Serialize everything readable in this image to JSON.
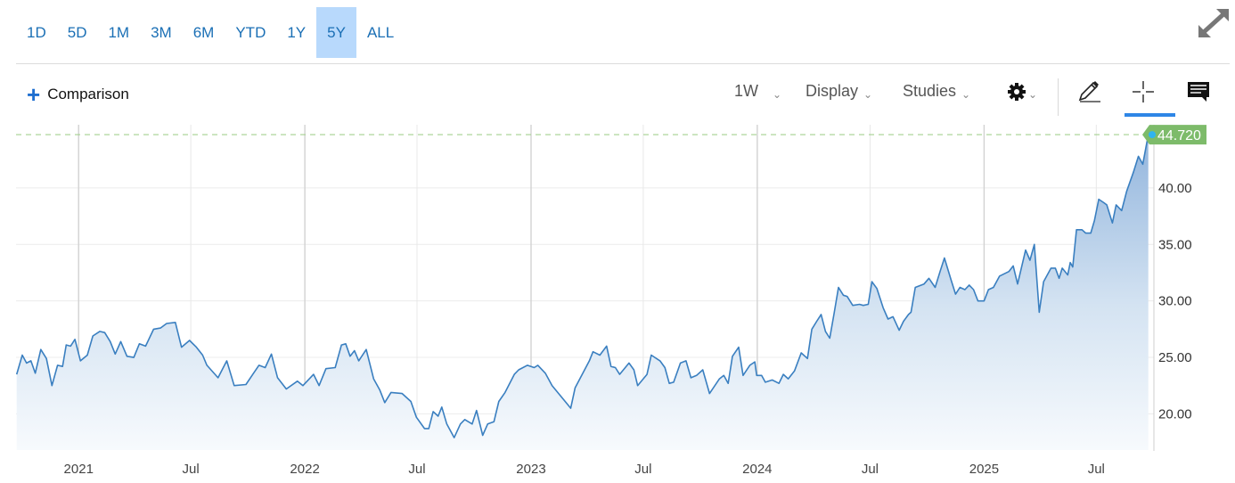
{
  "range_selector": {
    "items": [
      "1D",
      "5D",
      "1M",
      "3M",
      "6M",
      "YTD",
      "1Y",
      "5Y",
      "ALL"
    ],
    "selected": "5Y"
  },
  "toolbar": {
    "comparison_label": "Comparison",
    "interval_label": "1W",
    "display_label": "Display",
    "studies_label": "Studies",
    "icons": [
      "plus-icon",
      "chevron-down-icon",
      "gear-icon",
      "pencil-icon",
      "crosshair-icon",
      "comment-icon",
      "expand-icon"
    ],
    "active_tool": "crosshair"
  },
  "colors": {
    "accent": "#1a6fb5",
    "selected_range_bg": "#b8d9fc",
    "line": "#3a7fc0",
    "last_price_tag": "#7dbb6a",
    "last_price_dot": "#2fb4f0"
  },
  "chart_data": {
    "type": "area",
    "interval": "1W",
    "last_price_label": "44.720",
    "xlim": [
      "2020-09-22",
      "2025-10-02"
    ],
    "ylim": [
      16.8,
      45.2
    ],
    "grid": true,
    "y_axis_side": "right",
    "x_ticks": [
      {
        "date": "2021-01-01",
        "label": "2021",
        "major": true
      },
      {
        "date": "2021-07-01",
        "label": "Jul",
        "major": false
      },
      {
        "date": "2022-01-01",
        "label": "2022",
        "major": true
      },
      {
        "date": "2022-07-01",
        "label": "Jul",
        "major": false
      },
      {
        "date": "2023-01-01",
        "label": "2023",
        "major": true
      },
      {
        "date": "2023-07-01",
        "label": "Jul",
        "major": false
      },
      {
        "date": "2024-01-01",
        "label": "2024",
        "major": true
      },
      {
        "date": "2024-07-01",
        "label": "Jul",
        "major": false
      },
      {
        "date": "2025-01-01",
        "label": "2025",
        "major": true
      },
      {
        "date": "2025-07-01",
        "label": "Jul",
        "major": false
      }
    ],
    "y_ticks": [
      {
        "value": 40,
        "label": "40.00"
      },
      {
        "value": 35,
        "label": "35.00"
      },
      {
        "value": 30,
        "label": "30.00"
      },
      {
        "value": 25,
        "label": "25.00"
      },
      {
        "value": 20,
        "label": "20.00"
      }
    ],
    "points": [
      [
        "2020-09-23",
        23.5
      ],
      [
        "2020-10-02",
        25.2
      ],
      [
        "2020-10-09",
        24.5
      ],
      [
        "2020-10-16",
        24.7
      ],
      [
        "2020-10-23",
        23.6
      ],
      [
        "2020-11-01",
        25.7
      ],
      [
        "2020-11-10",
        24.9
      ],
      [
        "2020-11-19",
        22.5
      ],
      [
        "2020-11-28",
        24.3
      ],
      [
        "2020-12-06",
        24.2
      ],
      [
        "2020-12-12",
        26.1
      ],
      [
        "2020-12-19",
        26.0
      ],
      [
        "2020-12-26",
        26.6
      ],
      [
        "2021-01-04",
        24.7
      ],
      [
        "2021-01-15",
        25.2
      ],
      [
        "2021-01-24",
        26.9
      ],
      [
        "2021-02-04",
        27.3
      ],
      [
        "2021-02-12",
        27.2
      ],
      [
        "2021-02-21",
        26.4
      ],
      [
        "2021-03-01",
        25.3
      ],
      [
        "2021-03-10",
        26.4
      ],
      [
        "2021-03-20",
        25.1
      ],
      [
        "2021-03-31",
        25.0
      ],
      [
        "2021-04-09",
        26.2
      ],
      [
        "2021-04-19",
        26.0
      ],
      [
        "2021-05-02",
        27.5
      ],
      [
        "2021-05-13",
        27.6
      ],
      [
        "2021-05-23",
        28.0
      ],
      [
        "2021-06-06",
        28.1
      ],
      [
        "2021-06-16",
        25.9
      ],
      [
        "2021-06-29",
        26.5
      ],
      [
        "2021-07-10",
        25.9
      ],
      [
        "2021-07-20",
        25.2
      ],
      [
        "2021-07-27",
        24.3
      ],
      [
        "2021-08-14",
        23.2
      ],
      [
        "2021-08-28",
        24.7
      ],
      [
        "2021-09-09",
        22.5
      ],
      [
        "2021-09-28",
        22.6
      ],
      [
        "2021-10-09",
        23.5
      ],
      [
        "2021-10-19",
        24.3
      ],
      [
        "2021-10-29",
        24.1
      ],
      [
        "2021-11-08",
        25.3
      ],
      [
        "2021-11-18",
        23.2
      ],
      [
        "2021-12-02",
        22.2
      ],
      [
        "2021-12-20",
        22.9
      ],
      [
        "2021-12-29",
        22.5
      ],
      [
        "2022-01-15",
        23.5
      ],
      [
        "2022-01-24",
        22.5
      ],
      [
        "2022-02-04",
        24.0
      ],
      [
        "2022-02-19",
        24.1
      ],
      [
        "2022-03-01",
        26.1
      ],
      [
        "2022-03-08",
        26.2
      ],
      [
        "2022-03-15",
        25.1
      ],
      [
        "2022-03-22",
        25.6
      ],
      [
        "2022-03-29",
        24.7
      ],
      [
        "2022-04-10",
        25.7
      ],
      [
        "2022-04-22",
        23.1
      ],
      [
        "2022-05-02",
        22.1
      ],
      [
        "2022-05-10",
        21.0
      ],
      [
        "2022-05-20",
        21.9
      ],
      [
        "2022-06-07",
        21.8
      ],
      [
        "2022-06-21",
        21.1
      ],
      [
        "2022-06-30",
        19.7
      ],
      [
        "2022-07-13",
        18.7
      ],
      [
        "2022-07-20",
        18.7
      ],
      [
        "2022-07-27",
        20.2
      ],
      [
        "2022-08-04",
        19.8
      ],
      [
        "2022-08-10",
        20.6
      ],
      [
        "2022-08-18",
        19.1
      ],
      [
        "2022-08-30",
        17.9
      ],
      [
        "2022-09-09",
        19.1
      ],
      [
        "2022-09-16",
        19.5
      ],
      [
        "2022-09-28",
        19.1
      ],
      [
        "2022-10-05",
        20.3
      ],
      [
        "2022-10-15",
        18.1
      ],
      [
        "2022-10-23",
        19.1
      ],
      [
        "2022-11-02",
        19.3
      ],
      [
        "2022-11-10",
        21.1
      ],
      [
        "2022-11-20",
        21.9
      ],
      [
        "2022-12-05",
        23.5
      ],
      [
        "2022-12-12",
        23.9
      ],
      [
        "2022-12-26",
        24.3
      ],
      [
        "2023-01-06",
        24.1
      ],
      [
        "2023-01-12",
        24.3
      ],
      [
        "2023-01-24",
        23.6
      ],
      [
        "2023-02-04",
        22.5
      ],
      [
        "2023-02-22",
        21.3
      ],
      [
        "2023-03-06",
        20.5
      ],
      [
        "2023-03-13",
        22.3
      ],
      [
        "2023-04-05",
        24.7
      ],
      [
        "2023-04-11",
        25.5
      ],
      [
        "2023-04-22",
        25.2
      ],
      [
        "2023-05-03",
        26.0
      ],
      [
        "2023-05-10",
        24.2
      ],
      [
        "2023-05-17",
        24.1
      ],
      [
        "2023-05-24",
        23.5
      ],
      [
        "2023-06-08",
        24.5
      ],
      [
        "2023-06-16",
        23.9
      ],
      [
        "2023-06-22",
        22.5
      ],
      [
        "2023-07-07",
        23.5
      ],
      [
        "2023-07-14",
        25.2
      ],
      [
        "2023-07-28",
        24.7
      ],
      [
        "2023-08-05",
        24.1
      ],
      [
        "2023-08-12",
        22.7
      ],
      [
        "2023-08-19",
        22.8
      ],
      [
        "2023-08-30",
        24.5
      ],
      [
        "2023-09-08",
        24.7
      ],
      [
        "2023-09-16",
        23.2
      ],
      [
        "2023-09-25",
        23.4
      ],
      [
        "2023-10-05",
        23.9
      ],
      [
        "2023-10-16",
        21.8
      ],
      [
        "2023-11-01",
        23.1
      ],
      [
        "2023-11-08",
        23.4
      ],
      [
        "2023-11-15",
        22.7
      ],
      [
        "2023-11-22",
        25.1
      ],
      [
        "2023-12-02",
        25.9
      ],
      [
        "2023-12-09",
        23.4
      ],
      [
        "2023-12-20",
        24.3
      ],
      [
        "2023-12-28",
        24.6
      ],
      [
        "2023-12-31",
        23.4
      ],
      [
        "2024-01-08",
        23.4
      ],
      [
        "2024-01-14",
        22.8
      ],
      [
        "2024-01-25",
        23.0
      ],
      [
        "2024-02-05",
        22.7
      ],
      [
        "2024-02-12",
        23.5
      ],
      [
        "2024-02-20",
        23.1
      ],
      [
        "2024-03-01",
        23.8
      ],
      [
        "2024-03-12",
        25.4
      ],
      [
        "2024-03-22",
        24.9
      ],
      [
        "2024-03-29",
        27.5
      ],
      [
        "2024-04-06",
        28.2
      ],
      [
        "2024-04-13",
        28.8
      ],
      [
        "2024-04-20",
        27.3
      ],
      [
        "2024-04-27",
        26.7
      ],
      [
        "2024-05-04",
        28.9
      ],
      [
        "2024-05-11",
        31.2
      ],
      [
        "2024-05-19",
        30.5
      ],
      [
        "2024-05-25",
        30.4
      ],
      [
        "2024-06-03",
        29.6
      ],
      [
        "2024-06-14",
        29.7
      ],
      [
        "2024-06-20",
        29.6
      ],
      [
        "2024-06-28",
        29.7
      ],
      [
        "2024-07-04",
        31.7
      ],
      [
        "2024-07-12",
        31.1
      ],
      [
        "2024-07-22",
        29.4
      ],
      [
        "2024-07-30",
        28.4
      ],
      [
        "2024-08-07",
        28.6
      ],
      [
        "2024-08-17",
        27.4
      ],
      [
        "2024-08-24",
        28.2
      ],
      [
        "2024-09-01",
        28.8
      ],
      [
        "2024-09-05",
        29.0
      ],
      [
        "2024-09-12",
        31.2
      ],
      [
        "2024-09-26",
        31.5
      ],
      [
        "2024-10-04",
        32.0
      ],
      [
        "2024-10-14",
        31.2
      ],
      [
        "2024-10-22",
        32.6
      ],
      [
        "2024-10-29",
        33.8
      ],
      [
        "2024-11-09",
        31.8
      ],
      [
        "2024-11-16",
        30.6
      ],
      [
        "2024-11-23",
        31.2
      ],
      [
        "2024-12-01",
        31.0
      ],
      [
        "2024-12-08",
        31.4
      ],
      [
        "2024-12-15",
        31.0
      ],
      [
        "2024-12-22",
        30.0
      ],
      [
        "2025-01-01",
        30.0
      ],
      [
        "2025-01-08",
        31.0
      ],
      [
        "2025-01-16",
        31.2
      ],
      [
        "2025-01-26",
        32.2
      ],
      [
        "2025-02-10",
        32.6
      ],
      [
        "2025-02-17",
        33.1
      ],
      [
        "2025-02-24",
        31.5
      ],
      [
        "2025-03-02",
        32.9
      ],
      [
        "2025-03-09",
        34.5
      ],
      [
        "2025-03-16",
        33.6
      ],
      [
        "2025-03-23",
        35.0
      ],
      [
        "2025-03-31",
        29.0
      ],
      [
        "2025-04-07",
        31.7
      ],
      [
        "2025-04-19",
        32.9
      ],
      [
        "2025-04-26",
        32.9
      ],
      [
        "2025-05-02",
        32.0
      ],
      [
        "2025-05-07",
        32.9
      ],
      [
        "2025-05-16",
        32.3
      ],
      [
        "2025-05-20",
        33.4
      ],
      [
        "2025-05-24",
        33.0
      ],
      [
        "2025-05-30",
        36.3
      ],
      [
        "2025-06-08",
        36.3
      ],
      [
        "2025-06-14",
        36.0
      ],
      [
        "2025-06-22",
        36.0
      ],
      [
        "2025-06-28",
        37.1
      ],
      [
        "2025-07-05",
        39.0
      ],
      [
        "2025-07-13",
        38.7
      ],
      [
        "2025-07-18",
        38.5
      ],
      [
        "2025-07-27",
        36.9
      ],
      [
        "2025-08-02",
        38.5
      ],
      [
        "2025-08-11",
        38.0
      ],
      [
        "2025-08-19",
        39.7
      ],
      [
        "2025-08-30",
        41.4
      ],
      [
        "2025-09-07",
        42.8
      ],
      [
        "2025-09-14",
        42.1
      ],
      [
        "2025-09-23",
        44.72
      ]
    ]
  }
}
